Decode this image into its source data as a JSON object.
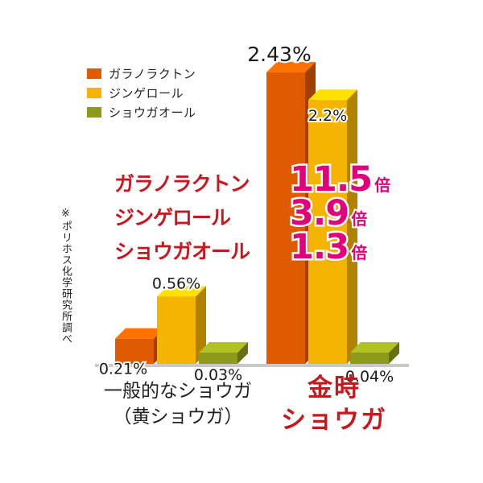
{
  "chart_data": {
    "type": "bar",
    "categories": [
      "一般的なショウガ（黄ショウガ）",
      "金時ショウガ"
    ],
    "series": [
      {
        "name": "ガラノラクトン",
        "values": [
          0.21,
          2.43
        ],
        "labels": [
          "0.21%",
          "2.43%"
        ],
        "color": "#e05a00"
      },
      {
        "name": "ジンゲロール",
        "values": [
          0.56,
          2.2
        ],
        "labels": [
          "0.56%",
          "2.2%"
        ],
        "color": "#f4b400"
      },
      {
        "name": "ショウガオール",
        "values": [
          0.03,
          0.04
        ],
        "labels": [
          "0.03%",
          "0.04%"
        ],
        "color": "#8e9a1c"
      }
    ],
    "legend_position": "top-left",
    "grid": false
  },
  "legend": [
    {
      "label": "ガラノラクトン",
      "color": "#e05a00"
    },
    {
      "label": "ジンゲロール",
      "color": "#f4b400"
    },
    {
      "label": "ショウガオール",
      "color": "#8e9a1c"
    }
  ],
  "multipliers": [
    {
      "name": "ガラノラクトン",
      "value": "11.5",
      "unit": "倍"
    },
    {
      "name": "ジンゲロール",
      "value": "3.9",
      "unit": "倍"
    },
    {
      "name": "ショウガオール",
      "value": "1.3",
      "unit": "倍"
    }
  ],
  "note": "※ポリホス化学研究所調べ",
  "category_labels": {
    "general_line1": "一般的なショウガ",
    "general_line2": "（黄ショウガ）",
    "kintoki_line1": "金時",
    "kintoki_line2": "ショウガ"
  }
}
